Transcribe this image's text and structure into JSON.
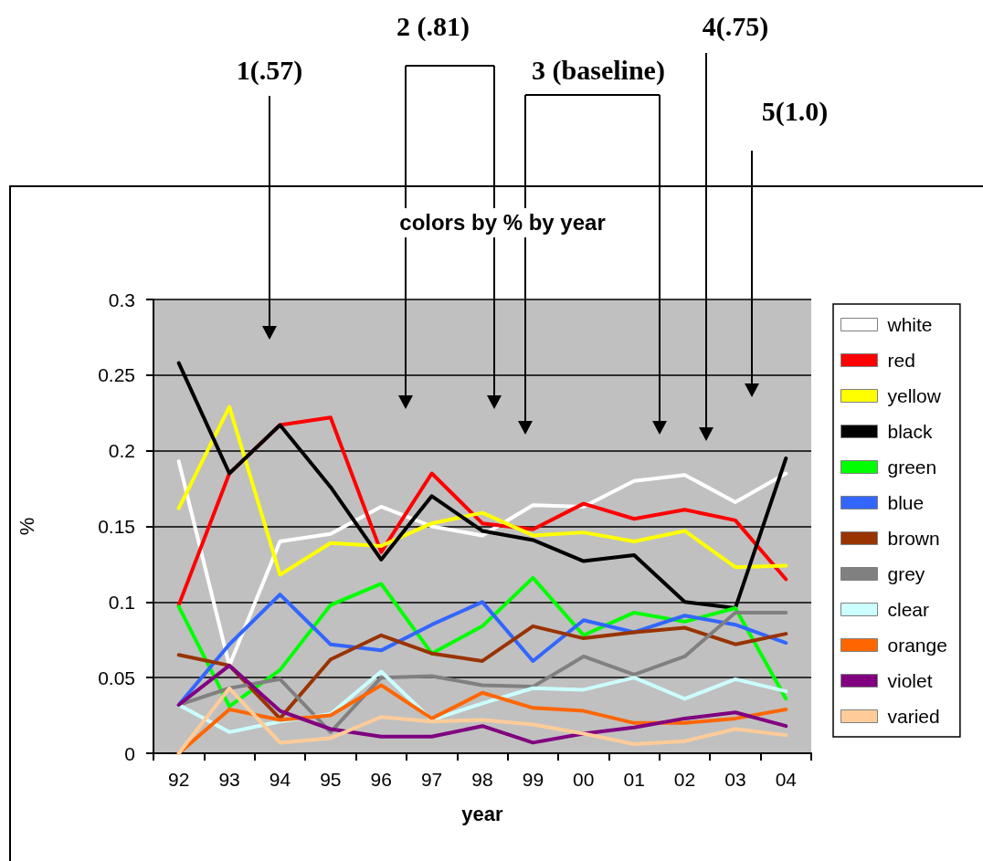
{
  "chart_data": {
    "type": "line",
    "title": "colors by % by year",
    "xlabel": "year",
    "ylabel": "%",
    "categories": [
      "92",
      "93",
      "94",
      "95",
      "96",
      "97",
      "98",
      "99",
      "00",
      "01",
      "02",
      "03",
      "04"
    ],
    "ylim": [
      0,
      0.3
    ],
    "yticks": [
      0,
      0.05,
      0.1,
      0.15,
      0.2,
      0.25,
      0.3
    ],
    "grid": "y",
    "legend": "right",
    "marker": "none",
    "line_style": "solid",
    "annotations": [
      "1(.57)",
      "2 (.81)",
      "3 (baseline)",
      "4(.75)",
      "5(1.0)"
    ],
    "series": [
      {
        "name": "white",
        "color": "#ffffff",
        "values": [
          0.193,
          0.058,
          0.14,
          0.145,
          0.163,
          0.15,
          0.144,
          0.164,
          0.163,
          0.18,
          0.184,
          0.166,
          0.185
        ]
      },
      {
        "name": "red",
        "color": "#ff0000",
        "values": [
          0.098,
          0.185,
          0.217,
          0.222,
          0.133,
          0.185,
          0.152,
          0.148,
          0.165,
          0.155,
          0.161,
          0.154,
          0.115
        ]
      },
      {
        "name": "yellow",
        "color": "#ffff00",
        "values": [
          0.162,
          0.229,
          0.118,
          0.139,
          0.137,
          0.152,
          0.159,
          0.144,
          0.146,
          0.14,
          0.147,
          0.123,
          0.124
        ]
      },
      {
        "name": "black",
        "color": "#000000",
        "values": [
          0.258,
          0.185,
          0.217,
          0.176,
          0.128,
          0.17,
          0.147,
          0.141,
          0.127,
          0.131,
          0.1,
          0.096,
          0.195
        ]
      },
      {
        "name": "green",
        "color": "#00ff00",
        "values": [
          0.097,
          0.031,
          0.055,
          0.098,
          0.112,
          0.066,
          0.084,
          0.116,
          0.078,
          0.093,
          0.087,
          0.096,
          0.036
        ]
      },
      {
        "name": "blue",
        "color": "#3366ff",
        "values": [
          0.032,
          0.072,
          0.105,
          0.072,
          0.068,
          0.085,
          0.1,
          0.061,
          0.088,
          0.08,
          0.091,
          0.085,
          0.073
        ]
      },
      {
        "name": "brown",
        "color": "#993300",
        "values": [
          0.065,
          0.058,
          0.023,
          0.062,
          0.078,
          0.066,
          0.061,
          0.084,
          0.076,
          0.08,
          0.083,
          0.072,
          0.079
        ]
      },
      {
        "name": "grey",
        "color": "#808080",
        "values": [
          0.032,
          0.043,
          0.049,
          0.014,
          0.05,
          0.051,
          0.045,
          0.044,
          0.064,
          0.052,
          0.064,
          0.093,
          0.093
        ]
      },
      {
        "name": "clear",
        "color": "#ccffff",
        "values": [
          0.032,
          0.014,
          0.021,
          0.026,
          0.054,
          0.022,
          0.033,
          0.043,
          0.042,
          0.05,
          0.036,
          0.049,
          0.041
        ]
      },
      {
        "name": "orange",
        "color": "#ff6600",
        "values": [
          0,
          0.029,
          0.022,
          0.025,
          0.045,
          0.023,
          0.04,
          0.03,
          0.028,
          0.02,
          0.02,
          0.023,
          0.029
        ]
      },
      {
        "name": "violet",
        "color": "#800080",
        "values": [
          0.032,
          0.058,
          0.028,
          0.016,
          0.011,
          0.011,
          0.018,
          0.007,
          0.013,
          0.017,
          0.023,
          0.027,
          0.018
        ]
      },
      {
        "name": "varied",
        "color": "#ffcc99",
        "values": [
          0,
          0.043,
          0.007,
          0.01,
          0.024,
          0.021,
          0.022,
          0.019,
          0.013,
          0.006,
          0.008,
          0.016,
          0.012
        ]
      }
    ]
  }
}
